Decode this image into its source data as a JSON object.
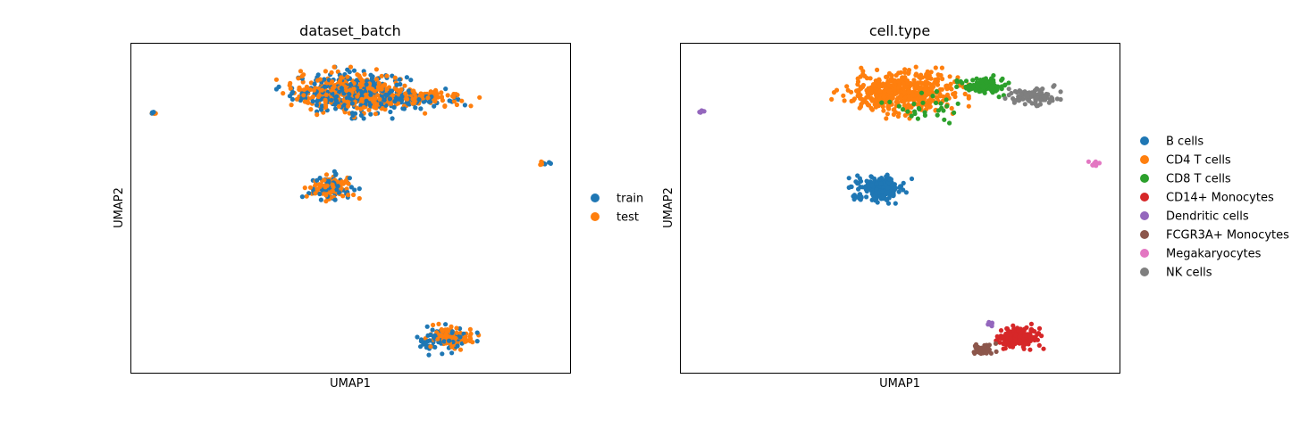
{
  "chart_data": [
    {
      "type": "scatter",
      "title": "dataset_batch",
      "xlabel": "UMAP1",
      "ylabel": "UMAP2",
      "xlim": [
        0,
        100
      ],
      "ylim": [
        0,
        100
      ],
      "grid": false,
      "legend_position": "right",
      "series": [
        {
          "name": "train",
          "color": "#1f77b4",
          "clusters": [
            {
              "cx": 50,
              "cy": 85,
              "rx": 13,
              "ry": 6,
              "n": 260
            },
            {
              "cx": 63,
              "cy": 83.5,
              "rx": 10,
              "ry": 2.5,
              "n": 70
            },
            {
              "cx": 45.5,
              "cy": 56,
              "rx": 5,
              "ry": 4,
              "n": 60
            },
            {
              "cx": 71,
              "cy": 10,
              "rx": 6,
              "ry": 4,
              "n": 70
            },
            {
              "cx": 5,
              "cy": 79,
              "rx": 0.6,
              "ry": 0.5,
              "n": 5
            },
            {
              "cx": 94,
              "cy": 63.5,
              "rx": 1.2,
              "ry": 0.6,
              "n": 5
            }
          ]
        },
        {
          "name": "test",
          "color": "#ff7f0e",
          "clusters": [
            {
              "cx": 50,
              "cy": 85,
              "rx": 13,
              "ry": 6,
              "n": 340
            },
            {
              "cx": 65,
              "cy": 83.5,
              "rx": 11,
              "ry": 2.5,
              "n": 110
            },
            {
              "cx": 45.5,
              "cy": 56,
              "rx": 5,
              "ry": 3.5,
              "n": 80
            },
            {
              "cx": 73,
              "cy": 11,
              "rx": 5,
              "ry": 3,
              "n": 100
            },
            {
              "cx": 5,
              "cy": 79,
              "rx": 0.6,
              "ry": 0.5,
              "n": 4
            },
            {
              "cx": 94,
              "cy": 63.5,
              "rx": 1.2,
              "ry": 0.6,
              "n": 5
            }
          ]
        }
      ]
    },
    {
      "type": "scatter",
      "title": "cell.type",
      "xlabel": "UMAP1",
      "ylabel": "UMAP2",
      "xlim": [
        0,
        100
      ],
      "ylim": [
        0,
        100
      ],
      "grid": false,
      "legend_position": "right",
      "series": [
        {
          "name": "B cells",
          "color": "#1f77b4",
          "clusters": [
            {
              "cx": 45.5,
              "cy": 56,
              "rx": 5.5,
              "ry": 3.5,
              "n": 200
            }
          ]
        },
        {
          "name": "CD4 T cells",
          "color": "#ff7f0e",
          "clusters": [
            {
              "cx": 50,
              "cy": 85,
              "rx": 12,
              "ry": 6,
              "n": 520
            }
          ]
        },
        {
          "name": "CD8 T cells",
          "color": "#2ca02c",
          "clusters": [
            {
              "cx": 69,
              "cy": 87,
              "rx": 5,
              "ry": 2.5,
              "n": 100
            },
            {
              "cx": 57,
              "cy": 81,
              "rx": 9,
              "ry": 4,
              "n": 30
            }
          ]
        },
        {
          "name": "CD14+ Monocytes",
          "color": "#d62728",
          "clusters": [
            {
              "cx": 77,
              "cy": 11,
              "rx": 4.5,
              "ry": 3,
              "n": 180
            }
          ]
        },
        {
          "name": "Dendritic cells",
          "color": "#9467bd",
          "clusters": [
            {
              "cx": 71,
              "cy": 15,
              "rx": 1.2,
              "ry": 0.8,
              "n": 10
            },
            {
              "cx": 5,
              "cy": 79,
              "rx": 0.6,
              "ry": 0.5,
              "n": 6
            }
          ]
        },
        {
          "name": "FCGR3A+ Monocytes",
          "color": "#8c564b",
          "clusters": [
            {
              "cx": 69,
              "cy": 7,
              "rx": 2.5,
              "ry": 2,
              "n": 50
            }
          ]
        },
        {
          "name": "Megakaryocytes",
          "color": "#e377c2",
          "clusters": [
            {
              "cx": 94,
              "cy": 63.5,
              "rx": 1.2,
              "ry": 0.6,
              "n": 10
            }
          ]
        },
        {
          "name": "NK cells",
          "color": "#7f7f7f",
          "clusters": [
            {
              "cx": 80,
              "cy": 84,
              "rx": 5,
              "ry": 2.5,
              "n": 110
            }
          ]
        }
      ]
    }
  ]
}
